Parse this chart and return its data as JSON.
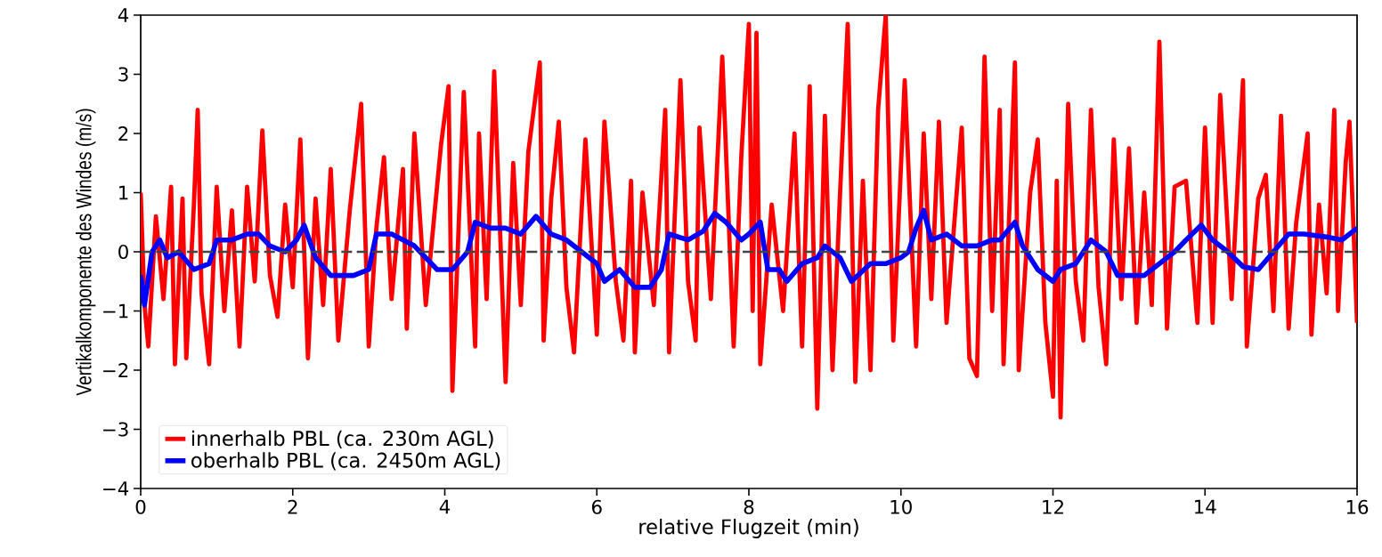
{
  "chart_data": {
    "type": "line",
    "xlabel": "relative Flugzeit (min)",
    "ylabel": "Vertikalkomponente des Windes (m/s)",
    "xlim": [
      0,
      16
    ],
    "ylim": [
      -4,
      4
    ],
    "xticks": [
      0,
      2,
      4,
      6,
      8,
      10,
      12,
      14,
      16
    ],
    "yticks": [
      {
        "value": -4,
        "label": "−4"
      },
      {
        "value": -3,
        "label": "−3"
      },
      {
        "value": -2,
        "label": "−2"
      },
      {
        "value": -1,
        "label": "−1"
      },
      0,
      1,
      2,
      3,
      4
    ],
    "legend": "bottom left",
    "grid": false,
    "ref_lines": [
      {
        "axis": "y",
        "value": 0,
        "color": "#444444",
        "line_style": "dashed"
      }
    ],
    "series": [
      {
        "name": "innerhalb PBL (ca. 230m AGL)",
        "color": "#ff0000",
        "x": [
          0.0,
          0.05,
          0.1,
          0.2,
          0.3,
          0.4,
          0.45,
          0.55,
          0.6,
          0.7,
          0.75,
          0.8,
          0.9,
          1.0,
          1.1,
          1.2,
          1.3,
          1.4,
          1.5,
          1.6,
          1.7,
          1.8,
          1.9,
          2.0,
          2.1,
          2.2,
          2.3,
          2.4,
          2.5,
          2.6,
          2.75,
          2.9,
          3.0,
          3.1,
          3.2,
          3.3,
          3.45,
          3.5,
          3.6,
          3.75,
          3.95,
          4.05,
          4.1,
          4.25,
          4.4,
          4.45,
          4.55,
          4.65,
          4.8,
          4.9,
          5.0,
          5.1,
          5.25,
          5.3,
          5.4,
          5.5,
          5.6,
          5.7,
          5.85,
          6.0,
          6.1,
          6.25,
          6.35,
          6.45,
          6.5,
          6.6,
          6.75,
          6.9,
          6.95,
          7.1,
          7.2,
          7.3,
          7.35,
          7.5,
          7.65,
          7.8,
          7.9,
          8.0,
          8.05,
          8.1,
          8.15,
          8.3,
          8.45,
          8.6,
          8.7,
          8.8,
          8.9,
          9.0,
          9.1,
          9.2,
          9.3,
          9.4,
          9.5,
          9.6,
          9.7,
          9.8,
          9.9,
          10.05,
          10.2,
          10.3,
          10.4,
          10.5,
          10.6,
          10.8,
          10.9,
          11.0,
          11.1,
          11.2,
          11.3,
          11.35,
          11.5,
          11.55,
          11.7,
          11.8,
          11.9,
          12.0,
          12.05,
          12.1,
          12.2,
          12.3,
          12.4,
          12.5,
          12.6,
          12.7,
          12.8,
          12.9,
          13.0,
          13.1,
          13.2,
          13.3,
          13.4,
          13.5,
          13.6,
          13.75,
          13.9,
          14.0,
          14.1,
          14.2,
          14.35,
          14.5,
          14.55,
          14.7,
          14.8,
          14.9,
          15.0,
          15.1,
          15.2,
          15.35,
          15.4,
          15.5,
          15.6,
          15.7,
          15.75,
          15.85,
          15.9,
          16.0
        ],
        "values": [
          1.0,
          -0.9,
          -1.6,
          0.6,
          -0.8,
          1.1,
          -1.9,
          0.9,
          -1.8,
          0.8,
          2.4,
          -0.7,
          -1.9,
          1.1,
          -1.0,
          0.7,
          -1.6,
          1.1,
          -0.5,
          2.05,
          -0.4,
          -1.1,
          0.8,
          -0.6,
          1.9,
          -1.8,
          0.9,
          -0.9,
          1.4,
          -1.5,
          0.7,
          2.5,
          -1.6,
          0.4,
          1.6,
          -0.8,
          1.4,
          -1.3,
          2.0,
          -0.9,
          1.8,
          2.8,
          -2.35,
          2.7,
          -1.6,
          2.0,
          -0.8,
          3.05,
          -2.2,
          1.5,
          -0.9,
          1.7,
          3.2,
          -1.5,
          0.9,
          2.2,
          -0.6,
          -1.7,
          1.9,
          -1.4,
          2.2,
          -0.5,
          -1.5,
          1.2,
          -1.7,
          1.0,
          -0.9,
          2.4,
          -1.7,
          2.9,
          -0.5,
          -1.5,
          2.1,
          -0.8,
          3.3,
          -1.6,
          1.6,
          3.85,
          -1.0,
          3.7,
          -1.9,
          0.8,
          -1.0,
          2.0,
          -1.6,
          2.8,
          -2.65,
          2.3,
          -2.0,
          1.0,
          3.85,
          -2.2,
          1.2,
          -2.0,
          2.4,
          4.0,
          -1.5,
          2.9,
          -1.6,
          2.0,
          -0.8,
          2.2,
          -1.2,
          2.1,
          -1.8,
          -2.1,
          3.3,
          -1.0,
          2.4,
          -1.9,
          3.2,
          -2.0,
          1.0,
          1.9,
          -1.2,
          -2.45,
          1.2,
          -2.8,
          2.5,
          -0.5,
          -1.5,
          2.4,
          -0.6,
          -1.9,
          1.9,
          -0.8,
          1.75,
          -1.2,
          1.0,
          -0.9,
          3.55,
          -1.3,
          1.1,
          1.2,
          -1.2,
          2.1,
          -1.2,
          2.65,
          -0.8,
          2.9,
          -1.6,
          0.9,
          1.3,
          -1.0,
          2.3,
          -1.3,
          0.5,
          2.0,
          -1.4,
          0.8,
          -0.7,
          2.4,
          -1.0,
          1.5,
          2.2,
          -1.2
        ]
      },
      {
        "name": "oberhalb PBL (ca. 2450m AGL)",
        "color": "#0000ff",
        "x": [
          0,
          0.05,
          0.15,
          0.25,
          0.35,
          0.5,
          0.7,
          0.9,
          1.0,
          1.2,
          1.4,
          1.55,
          1.7,
          1.9,
          2.05,
          2.15,
          2.3,
          2.5,
          2.8,
          3.0,
          3.1,
          3.3,
          3.6,
          3.9,
          4.1,
          4.3,
          4.4,
          4.6,
          4.8,
          5.0,
          5.2,
          5.4,
          5.6,
          5.8,
          6.0,
          6.1,
          6.3,
          6.5,
          6.7,
          6.85,
          6.95,
          7.2,
          7.4,
          7.55,
          7.7,
          7.9,
          8.0,
          8.15,
          8.25,
          8.4,
          8.5,
          8.7,
          8.9,
          9.0,
          9.2,
          9.35,
          9.6,
          9.8,
          10.0,
          10.1,
          10.2,
          10.3,
          10.4,
          10.6,
          10.8,
          11.0,
          11.2,
          11.3,
          11.5,
          11.6,
          11.8,
          12.0,
          12.1,
          12.3,
          12.5,
          12.7,
          12.85,
          13.0,
          13.2,
          13.4,
          13.6,
          13.75,
          13.95,
          14.1,
          14.3,
          14.5,
          14.7,
          14.9,
          15.1,
          15.3,
          15.6,
          15.8,
          16.0
        ],
        "values": [
          -0.4,
          -0.9,
          0.0,
          0.2,
          -0.1,
          0.0,
          -0.3,
          -0.2,
          0.2,
          0.2,
          0.3,
          0.3,
          0.1,
          0.0,
          0.2,
          0.45,
          -0.1,
          -0.4,
          -0.4,
          -0.3,
          0.3,
          0.3,
          0.1,
          -0.3,
          -0.3,
          0.0,
          0.5,
          0.4,
          0.4,
          0.3,
          0.6,
          0.3,
          0.2,
          0.0,
          -0.2,
          -0.5,
          -0.3,
          -0.6,
          -0.6,
          -0.3,
          0.3,
          0.2,
          0.35,
          0.65,
          0.5,
          0.2,
          0.3,
          0.5,
          -0.3,
          -0.3,
          -0.5,
          -0.2,
          -0.1,
          0.1,
          -0.1,
          -0.5,
          -0.2,
          -0.2,
          -0.1,
          0.0,
          0.4,
          0.7,
          0.2,
          0.3,
          0.1,
          0.1,
          0.2,
          0.2,
          0.5,
          0.1,
          -0.3,
          -0.5,
          -0.3,
          -0.2,
          0.2,
          0.0,
          -0.4,
          -0.4,
          -0.4,
          -0.2,
          0.0,
          0.2,
          0.45,
          0.2,
          0.0,
          -0.25,
          -0.3,
          0.0,
          0.3,
          0.3,
          0.25,
          0.2,
          0.4
        ]
      }
    ]
  }
}
